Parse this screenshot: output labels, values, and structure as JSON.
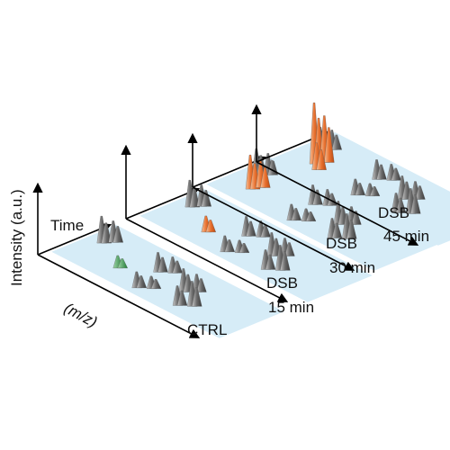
{
  "axis_labels": {
    "intensity": "Intensity (a.u.)",
    "time": "Time",
    "mz": "(m/z)"
  },
  "panels": [
    {
      "lines": [
        "CTRL"
      ]
    },
    {
      "lines": [
        "DSB",
        "15 min"
      ]
    },
    {
      "lines": [
        "DSB",
        "30 min"
      ]
    },
    {
      "lines": [
        "DSB",
        "45 min"
      ]
    }
  ]
}
